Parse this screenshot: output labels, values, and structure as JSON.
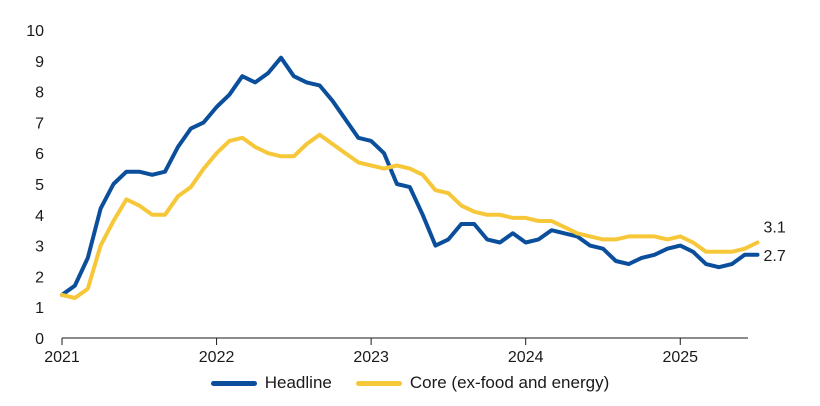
{
  "chart_data": {
    "type": "line",
    "title": "",
    "xlabel": "",
    "ylabel": "",
    "ylim": [
      0,
      10
    ],
    "yticks": [
      0,
      1,
      2,
      3,
      4,
      5,
      6,
      7,
      8,
      9,
      10
    ],
    "xlim": [
      2021.0,
      2025.6
    ],
    "xticks": [
      {
        "value": 2021,
        "label": "2021"
      },
      {
        "value": 2022,
        "label": "2022"
      },
      {
        "value": 2023,
        "label": "2023"
      },
      {
        "value": 2024,
        "label": "2024"
      },
      {
        "value": 2025,
        "label": "2025"
      }
    ],
    "x_start": 2021.0,
    "x_step_months": 1,
    "legend_position": "bottom-center",
    "series": [
      {
        "name": "Headline",
        "color": "#0b4f9c",
        "end_label": "2.7",
        "values": [
          1.4,
          1.7,
          2.6,
          4.2,
          5.0,
          5.4,
          5.4,
          5.3,
          5.4,
          6.2,
          6.8,
          7.0,
          7.5,
          7.9,
          8.5,
          8.3,
          8.6,
          9.1,
          8.5,
          8.3,
          8.2,
          7.7,
          7.1,
          6.5,
          6.4,
          6.0,
          5.0,
          4.9,
          4.0,
          3.0,
          3.2,
          3.7,
          3.7,
          3.2,
          3.1,
          3.4,
          3.1,
          3.2,
          3.5,
          3.4,
          3.3,
          3.0,
          2.9,
          2.5,
          2.4,
          2.6,
          2.7,
          2.9,
          3.0,
          2.8,
          2.4,
          2.3,
          2.4,
          2.7,
          2.7
        ]
      },
      {
        "name": "Core (ex-food and energy)",
        "color": "#f7c73a",
        "end_label": "3.1",
        "values": [
          1.4,
          1.3,
          1.6,
          3.0,
          3.8,
          4.5,
          4.3,
          4.0,
          4.0,
          4.6,
          4.9,
          5.5,
          6.0,
          6.4,
          6.5,
          6.2,
          6.0,
          5.9,
          5.9,
          6.3,
          6.6,
          6.3,
          6.0,
          5.7,
          5.6,
          5.5,
          5.6,
          5.5,
          5.3,
          4.8,
          4.7,
          4.3,
          4.1,
          4.0,
          4.0,
          3.9,
          3.9,
          3.8,
          3.8,
          3.6,
          3.4,
          3.3,
          3.2,
          3.2,
          3.3,
          3.3,
          3.3,
          3.2,
          3.3,
          3.1,
          2.8,
          2.8,
          2.8,
          2.9,
          3.1
        ]
      }
    ]
  }
}
